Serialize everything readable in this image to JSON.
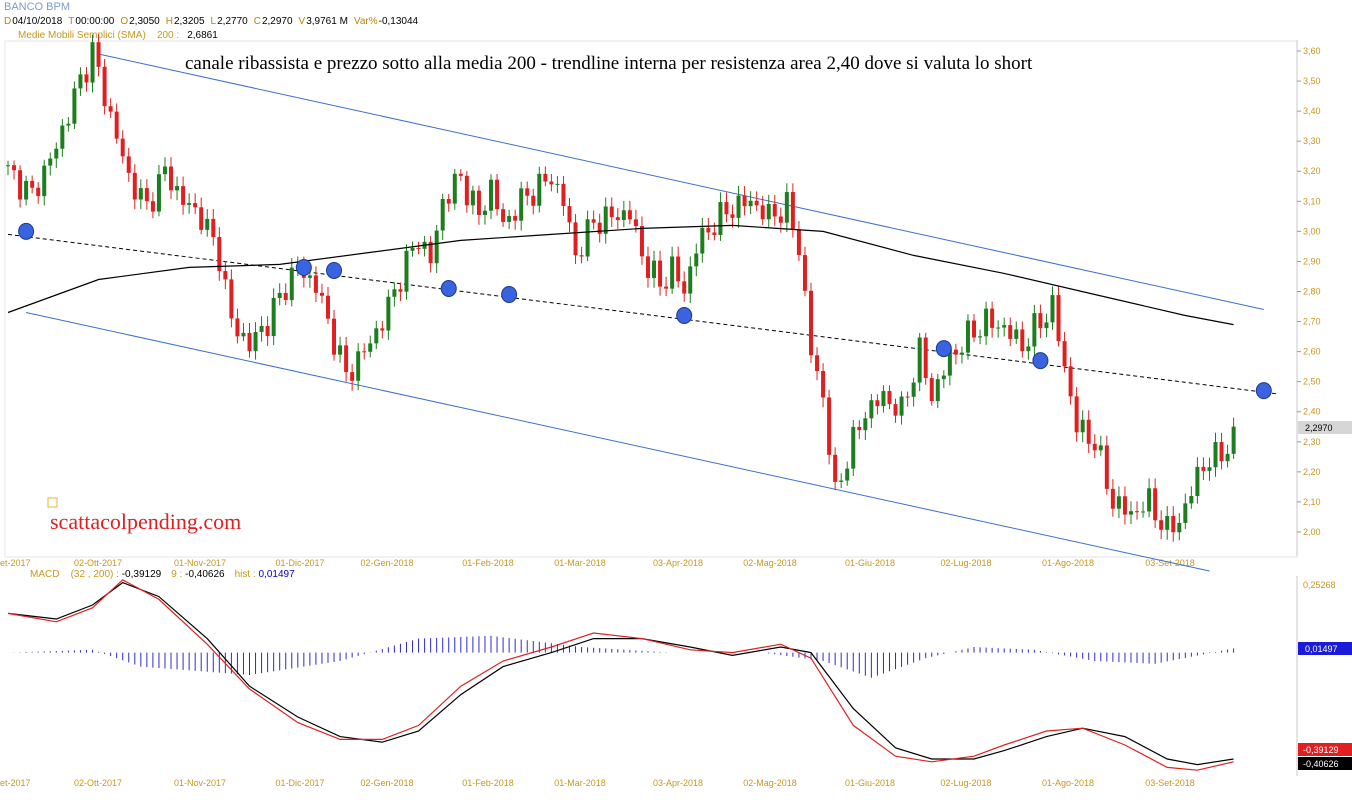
{
  "header": {
    "title": "BANCO BPM",
    "ohlc": [
      {
        "k": "D",
        "v": "04/10/2018"
      },
      {
        "k": "T",
        "v": "00:00:00"
      },
      {
        "k": "O",
        "v": "2,3050"
      },
      {
        "k": "H",
        "v": "2,3205"
      },
      {
        "k": "L",
        "v": "2,2770"
      },
      {
        "k": "C",
        "v": "2,2970"
      },
      {
        "k": "V",
        "v": "3,9761 M"
      },
      {
        "k": "Var%",
        "v": "-0,13044"
      }
    ],
    "sma_label": "Medie Mobili Semplici (SMA)",
    "sma_period": "200 :",
    "sma_value": "2,6861"
  },
  "macd_header": {
    "label": "MACD",
    "params": "(32 , 200) :",
    "macd_value": "-0,39129",
    "signal_label": "9 :",
    "signal_value": "-0,40626",
    "hist_label": "hist :",
    "hist_value": "0,01497"
  },
  "colors": {
    "up": "#1e7d1e",
    "down": "#e02020",
    "channel": "#3a6fd0",
    "sma": "#000000",
    "marker": "#3a63e0",
    "axis_text": "#c8961e",
    "macd": "#000000",
    "signal": "#e02020",
    "hist": "#2a2ad0"
  },
  "chart_data": [
    {
      "type": "candlestick",
      "title": "canale ribassista e prezzo sotto alla media 200 - trendline interna per resistenza area 2,40 dove si valuta lo short",
      "watermark": "scattacolpending.com",
      "last_price_label": "2,2970",
      "y_ticks": [
        "3,60",
        "3,50",
        "3,40",
        "3,30",
        "3,20",
        "3,10",
        "3,00",
        "2,90",
        "2,80",
        "2,70",
        "2,60",
        "2,50",
        "2,40",
        "2,30",
        "2,20",
        "2,10",
        "2,00"
      ],
      "ylim": [
        1.93,
        3.62
      ],
      "x_labels": [
        "et-2017",
        "02-Ott-2017",
        "01-Nov-2017",
        "01-Dic-2017",
        "02-Gen-2018",
        "01-Feb-2018",
        "01-Mar-2018",
        "03-Apr-2018",
        "02-Mag-2018",
        "01-Giu-2018",
        "02-Lug-2018",
        "01-Ago-2018",
        "03-Set-2018"
      ],
      "close_path": [
        [
          0,
          3.2
        ],
        [
          4,
          3.12
        ],
        [
          8,
          3.28
        ],
        [
          11,
          3.45
        ],
        [
          14,
          3.6
        ],
        [
          17,
          3.38
        ],
        [
          20,
          3.18
        ],
        [
          23,
          3.08
        ],
        [
          26,
          3.2
        ],
        [
          29,
          3.1
        ],
        [
          32,
          3.05
        ],
        [
          35,
          2.92
        ],
        [
          37,
          2.7
        ],
        [
          40,
          2.62
        ],
        [
          43,
          2.7
        ],
        [
          46,
          2.82
        ],
        [
          48,
          2.88
        ],
        [
          51,
          2.82
        ],
        [
          53,
          2.7
        ],
        [
          56,
          2.52
        ],
        [
          59,
          2.6
        ],
        [
          62,
          2.7
        ],
        [
          65,
          2.85
        ],
        [
          68,
          2.98
        ],
        [
          70,
          2.9
        ],
        [
          72,
          3.1
        ],
        [
          75,
          3.18
        ],
        [
          78,
          3.05
        ],
        [
          80,
          3.15
        ],
        [
          82,
          3.02
        ],
        [
          85,
          3.1
        ],
        [
          88,
          3.15
        ],
        [
          90,
          3.18
        ],
        [
          92,
          3.1
        ],
        [
          94,
          2.92
        ],
        [
          97,
          3.03
        ],
        [
          100,
          3.05
        ],
        [
          103,
          3.06
        ],
        [
          105,
          2.92
        ],
        [
          108,
          2.82
        ],
        [
          110,
          2.88
        ],
        [
          112,
          2.8
        ],
        [
          114,
          2.95
        ],
        [
          117,
          3.03
        ],
        [
          120,
          3.08
        ],
        [
          123,
          3.1
        ],
        [
          126,
          3.05
        ],
        [
          129,
          3.08
        ],
        [
          131,
          2.95
        ],
        [
          133,
          2.6
        ],
        [
          135,
          2.45
        ],
        [
          137,
          2.12
        ],
        [
          139,
          2.25
        ],
        [
          142,
          2.4
        ],
        [
          145,
          2.45
        ],
        [
          148,
          2.4
        ],
        [
          151,
          2.6
        ],
        [
          153,
          2.45
        ],
        [
          156,
          2.58
        ],
        [
          159,
          2.65
        ],
        [
          162,
          2.7
        ],
        [
          165,
          2.68
        ],
        [
          168,
          2.62
        ],
        [
          171,
          2.7
        ],
        [
          173,
          2.75
        ],
        [
          175,
          2.55
        ],
        [
          177,
          2.35
        ],
        [
          180,
          2.3
        ],
        [
          183,
          2.1
        ],
        [
          186,
          2.06
        ],
        [
          189,
          2.1
        ],
        [
          192,
          2.0
        ],
        [
          195,
          2.07
        ],
        [
          197,
          2.2
        ],
        [
          200,
          2.25
        ],
        [
          203,
          2.3
        ]
      ],
      "series": [
        {
          "name": "",
          "type": "line",
          "values": [
            [
              0,
              2.73
            ],
            [
              15,
              2.84
            ],
            [
              30,
              2.88
            ],
            [
              45,
              2.89
            ],
            [
              60,
              2.93
            ],
            [
              75,
              2.97
            ],
            [
              90,
              2.99
            ],
            [
              105,
              3.01
            ],
            [
              120,
              3.02
            ],
            [
              135,
              3.0
            ],
            [
              150,
              2.92
            ],
            [
              165,
              2.86
            ],
            [
              180,
              2.79
            ],
            [
              195,
              2.72
            ],
            [
              203,
              2.69
            ]
          ]
        }
      ],
      "channel": {
        "upper": [
          [
            15,
            3.59
          ],
          [
            208,
            2.74
          ]
        ],
        "lower": [
          [
            3,
            2.73
          ],
          [
            199,
            1.87
          ]
        ]
      },
      "inner_trendline": [
        [
          0,
          2.99
        ],
        [
          210,
          2.46
        ]
      ],
      "markers": [
        [
          3,
          3.0
        ],
        [
          49,
          2.88
        ],
        [
          54,
          2.87
        ],
        [
          73,
          2.81
        ],
        [
          83,
          2.79
        ],
        [
          112,
          2.72
        ],
        [
          155,
          2.61
        ],
        [
          171,
          2.57
        ],
        [
          208,
          2.47
        ]
      ]
    },
    {
      "type": "line",
      "title": "MACD",
      "y_ticks": [
        "0,25268"
      ],
      "ylim": [
        -0.43,
        0.27
      ],
      "value_labels": [
        "0,01497",
        "-0,39129",
        "-0,40626"
      ],
      "series": [
        {
          "name": "",
          "values": [
            [
              0,
              0.14
            ],
            [
              8,
              0.12
            ],
            [
              14,
              0.17
            ],
            [
              19,
              0.25
            ],
            [
              25,
              0.2
            ],
            [
              33,
              0.05
            ],
            [
              40,
              -0.12
            ],
            [
              48,
              -0.23
            ],
            [
              55,
              -0.3
            ],
            [
              62,
              -0.32
            ],
            [
              68,
              -0.28
            ],
            [
              75,
              -0.15
            ],
            [
              82,
              -0.05
            ],
            [
              90,
              0.0
            ],
            [
              97,
              0.05
            ],
            [
              105,
              0.05
            ],
            [
              113,
              0.02
            ],
            [
              120,
              -0.01
            ],
            [
              128,
              0.02
            ],
            [
              133,
              0.0
            ],
            [
              140,
              -0.2
            ],
            [
              147,
              -0.34
            ],
            [
              153,
              -0.38
            ],
            [
              160,
              -0.38
            ],
            [
              165,
              -0.35
            ],
            [
              172,
              -0.3
            ],
            [
              178,
              -0.27
            ],
            [
              185,
              -0.3
            ],
            [
              192,
              -0.38
            ],
            [
              197,
              -0.4
            ],
            [
              203,
              -0.38
            ]
          ]
        },
        {
          "name": "",
          "values": [
            [
              0,
              0.14
            ],
            [
              8,
              0.11
            ],
            [
              14,
              0.16
            ],
            [
              19,
              0.26
            ],
            [
              25,
              0.19
            ],
            [
              33,
              0.03
            ],
            [
              40,
              -0.13
            ],
            [
              48,
              -0.25
            ],
            [
              55,
              -0.31
            ],
            [
              62,
              -0.31
            ],
            [
              68,
              -0.26
            ],
            [
              75,
              -0.12
            ],
            [
              82,
              -0.03
            ],
            [
              90,
              0.02
            ],
            [
              97,
              0.07
            ],
            [
              105,
              0.05
            ],
            [
              113,
              0.01
            ],
            [
              120,
              0.0
            ],
            [
              128,
              0.03
            ],
            [
              133,
              -0.02
            ],
            [
              140,
              -0.26
            ],
            [
              147,
              -0.37
            ],
            [
              153,
              -0.39
            ],
            [
              160,
              -0.37
            ],
            [
              165,
              -0.33
            ],
            [
              172,
              -0.28
            ],
            [
              178,
              -0.27
            ],
            [
              185,
              -0.33
            ],
            [
              192,
              -0.41
            ],
            [
              197,
              -0.42
            ],
            [
              203,
              -0.39
            ]
          ]
        }
      ],
      "hist_profile": [
        [
          0,
          0.0
        ],
        [
          14,
          0.01
        ],
        [
          22,
          -0.05
        ],
        [
          40,
          -0.08
        ],
        [
          55,
          -0.03
        ],
        [
          68,
          0.05
        ],
        [
          80,
          0.06
        ],
        [
          95,
          0.02
        ],
        [
          110,
          0.0
        ],
        [
          125,
          0.0
        ],
        [
          135,
          -0.03
        ],
        [
          143,
          -0.09
        ],
        [
          152,
          -0.02
        ],
        [
          160,
          0.02
        ],
        [
          170,
          0.01
        ],
        [
          180,
          -0.03
        ],
        [
          190,
          -0.04
        ],
        [
          203,
          0.015
        ]
      ]
    }
  ]
}
